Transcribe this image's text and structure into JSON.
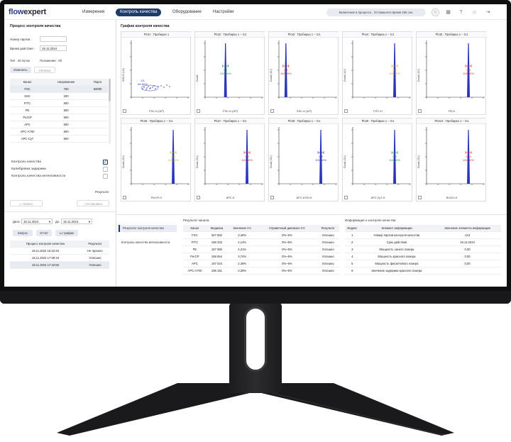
{
  "app": {
    "logo_a": "flow",
    "logo_b": "expert"
  },
  "nav": {
    "tabs": [
      "Измерения",
      "Контроль качества",
      "Оборудование",
      "Настройки"
    ],
    "active": 1
  },
  "status": {
    "text": "Включение в процессе , Оставшееся время 256 сек."
  },
  "left": {
    "title": "Процесс контроля качества",
    "batch_label": "Номер партии :",
    "batch_value": "",
    "expiry_label": "Время действия :",
    "expiry_value": "19.11.2024",
    "type_text": "Тип : 40 лучок",
    "position_text": "Положение : 00",
    "change_btn": "Изменить",
    "clear_btn": "Облачка",
    "table_headers": [
      "Канал",
      "Напряжение",
      "Порог"
    ],
    "table_rows": [
      [
        "FSC",
        "750",
        "50000"
      ],
      [
        "SSC",
        "200",
        ""
      ],
      [
        "FITC",
        "500",
        ""
      ],
      [
        "PE",
        "500",
        ""
      ],
      [
        "PerCP",
        "500",
        ""
      ],
      [
        "APC",
        "500",
        ""
      ],
      [
        "APC-A700",
        "500",
        ""
      ],
      [
        "APC-Cy7",
        "600",
        ""
      ]
    ],
    "checks": [
      {
        "label": "Контроль качества",
        "checked": true
      },
      {
        "label": "Калибровка задержки",
        "checked": false
      },
      {
        "label": "Контроль качества интенсивности",
        "checked": false
      }
    ],
    "result_label": "Результат",
    "start_btn": "Начать",
    "stop_btn": "Остановить",
    "date_from_label": "Дата :",
    "date_from": "18.11.2024",
    "date_to_label": "До",
    "date_to": "19.11.2024",
    "query_btn": "Запрос",
    "report_btn": "Отчет",
    "lj_btn": "LJ график",
    "hist_headers": [
      "Процесс контроля качества",
      "Результат"
    ],
    "hist_rows": [
      [
        "18.11.2024 16:22:33",
        "Не прошло"
      ],
      [
        "18.11.2024 17:09:19",
        "Успешно"
      ],
      [
        "18.11.2024 17:42:56",
        "Успешно"
      ]
    ]
  },
  "right": {
    "chart_title": "График контроля качества",
    "plots": [
      {
        "title": "Plot1 : Пробирка 1",
        "xlabel": "FSC-H (10³)",
        "ylabel": "SSC-H (10³)",
        "gate": "G1",
        "pct": "84.60%",
        "kind": "scatter",
        "color": "#2a36b8"
      },
      {
        "title": "Plot2 : Пробирка 1 – G1",
        "xlabel": "FSC-H (10³)",
        "ylabel": "Count",
        "gate": "G2",
        "pct": "100.00%",
        "kind": "peak",
        "peak": 0.35,
        "color": "#1a9a40"
      },
      {
        "title": "Plot3 : Пробирка 1 – G1",
        "xlabel": "SSC-H (10³)",
        "ylabel": "Count (10³)",
        "gate": "G3",
        "pct": "100.00%",
        "kind": "peak",
        "peak": 0.12,
        "color": "#e02a2a"
      },
      {
        "title": "Plot4 : Пробирка 1 – G1",
        "xlabel": "FITC-H",
        "ylabel": "Count (10³)",
        "gate": "G4",
        "pct": "100.00%",
        "kind": "peak",
        "peak": 0.72,
        "color": "#e0a020"
      },
      {
        "title": "Plot5 : Пробирка 1 – G1",
        "xlabel": "PE-H",
        "ylabel": "Count (10³)",
        "gate": "G5",
        "pct": "100.00%",
        "kind": "peak",
        "peak": 0.72,
        "color": "#e02a2a"
      },
      {
        "title": "Plot6 : Пробирка 1 – G1",
        "xlabel": "PerCP-H",
        "ylabel": "Count (10³)",
        "gate": "G6",
        "pct": "100.00%",
        "kind": "peak",
        "peak": 0.72,
        "color": "#c8b020"
      },
      {
        "title": "Plot7 : Пробирка 1 – G1",
        "xlabel": "APC-H",
        "ylabel": "Count (10³)",
        "gate": "G7",
        "pct": "100.00%",
        "kind": "peak",
        "peak": 0.72,
        "color": "#e02a2a"
      },
      {
        "title": "Plot8 : Пробирка 1 – G1",
        "xlabel": "APC-A700-H",
        "ylabel": "Count (10³)",
        "gate": "G8",
        "pct": "100.00%",
        "kind": "peak",
        "peak": 0.72,
        "color": "#2a36b8"
      },
      {
        "title": "Plot9 : Пробирка 1 – G1",
        "xlabel": "APC-Cy7-H",
        "ylabel": "Count (10³)",
        "gate": "G9",
        "pct": "100.00%",
        "kind": "peak",
        "peak": 0.72,
        "color": "#1a9a40"
      },
      {
        "title": "Plot10 : Пробирка 1 – G1",
        "xlabel": "BV421-H",
        "ylabel": "Count (10³)",
        "gate": "G10",
        "pct": "100.00%",
        "kind": "peak",
        "peak": 0.72,
        "color": "#e02a2a"
      }
    ],
    "bottom_tabs": [
      "Результат контроля качества",
      "Контроль качества интенсивности"
    ],
    "results_title": "Результат канала",
    "results_headers": [
      "Канал",
      "Медиана",
      "Значение CV",
      "Справочный диапазон CV",
      "Результат"
    ],
    "results_rows": [
      [
        "FSC",
        "347 582",
        "3,46%",
        "0%~5%",
        "Успешно"
      ],
      [
        "FITC",
        "158 333",
        "4,14%",
        "0%~5%",
        "Успешно"
      ],
      [
        "PE",
        "157 980",
        "4,21%",
        "0%~5%",
        "Успешно"
      ],
      [
        "PerCP",
        "158 654",
        "3,74%",
        "0%~5%",
        "Успешно"
      ],
      [
        "APC",
        "157 024",
        "2,48%",
        "0%~5%",
        "Успешно"
      ],
      [
        "APC-A700",
        "196 151",
        "2,35%",
        "0%~5%",
        "Успешно"
      ]
    ],
    "info_title": "Информация о контроле качества",
    "info_headers": [
      "Индекс",
      "Элемент информации",
      "Значение элемента информации"
    ],
    "info_rows": [
      [
        "1",
        "Номер партии контроля качества",
        "123"
      ],
      [
        "2",
        "Срок действия",
        "19.11.2024"
      ],
      [
        "3",
        "Мощность синего лазера",
        "0,00"
      ],
      [
        "4",
        "Мощность красного лазера",
        "0,00"
      ],
      [
        "5",
        "Мощность фиолетового лазера",
        "0,00"
      ],
      [
        "6",
        "Значение задержки красного лазера",
        ""
      ]
    ]
  }
}
